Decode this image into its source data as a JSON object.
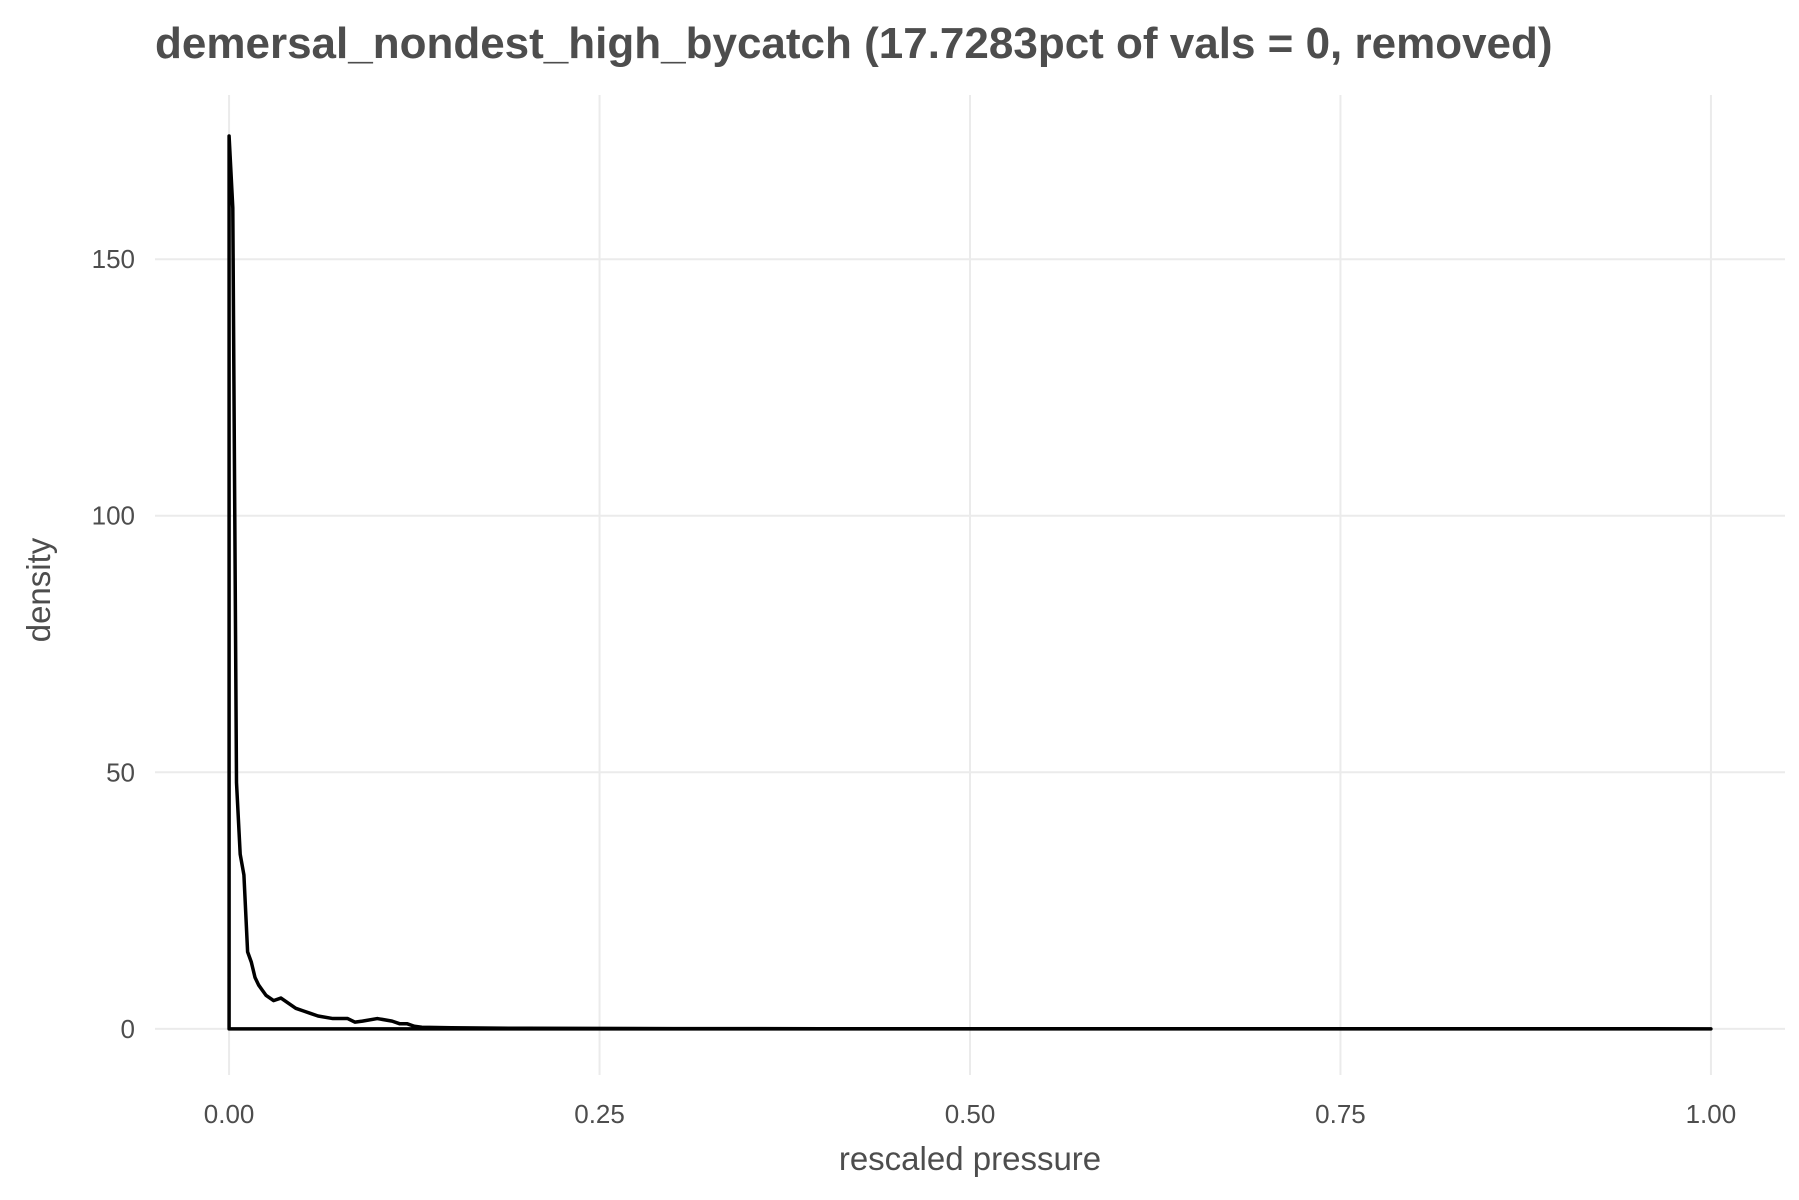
{
  "chart_data": {
    "type": "line",
    "title": "demersal_nondest_high_bycatch (17.7283pct of vals = 0, removed)",
    "xlabel": "rescaled pressure",
    "ylabel": "density",
    "xlim": [
      -0.05,
      1.05
    ],
    "ylim": [
      -9,
      182
    ],
    "x_ticks": [
      0,
      0.25,
      0.5,
      0.75,
      1
    ],
    "x_tick_labels": [
      "0.00",
      "0.25",
      "0.50",
      "0.75",
      "1.00"
    ],
    "y_ticks": [
      0,
      50,
      100,
      150
    ],
    "y_tick_labels": [
      "0",
      "50",
      "100",
      "150"
    ],
    "grid": true,
    "legend": "none",
    "line_color": "#000000",
    "series": [
      {
        "x": [
          0,
          0,
          0.0025,
          0.005,
          0.0075,
          0.01,
          0.0125,
          0.015,
          0.0175,
          0.02,
          0.0225,
          0.025,
          0.03,
          0.035,
          0.04,
          0.045,
          0.05,
          0.055,
          0.06,
          0.07,
          0.08,
          0.085,
          0.09,
          0.1,
          0.11,
          0.115,
          0.12,
          0.125,
          0.13,
          0.15,
          0.2,
          0.3,
          0.4,
          0.5,
          0.6,
          0.7,
          0.8,
          0.9,
          1,
          1,
          0
        ],
        "y": [
          0,
          174,
          160,
          48,
          34,
          30,
          15,
          13,
          10,
          8.5,
          7.5,
          6.5,
          5.5,
          6,
          5,
          4,
          3.5,
          3,
          2.5,
          2,
          2,
          1.3,
          1.5,
          2,
          1.5,
          1,
          1,
          0.5,
          0.3,
          0.2,
          0.1,
          0.05,
          0.02,
          0.01,
          0.01,
          0.01,
          0.01,
          0.01,
          0,
          0,
          0
        ]
      }
    ]
  }
}
